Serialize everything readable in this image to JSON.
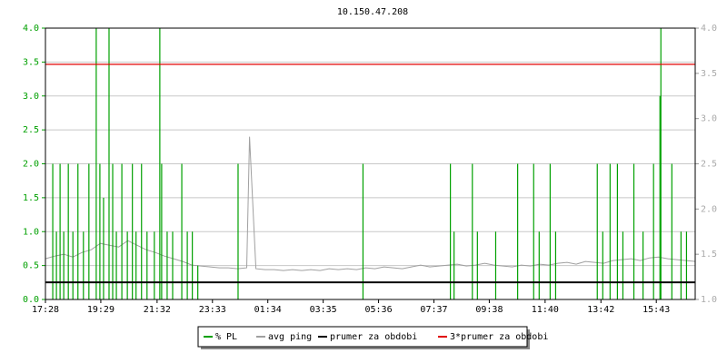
{
  "chart_data": {
    "type": "line",
    "title": "10.150.47.208",
    "xlim": [
      0,
      1420
    ],
    "xticks": [
      {
        "value": 0,
        "label": "17:28"
      },
      {
        "value": 121,
        "label": "19:29"
      },
      {
        "value": 244,
        "label": "21:32"
      },
      {
        "value": 365,
        "label": "23:33"
      },
      {
        "value": 486,
        "label": "01:34"
      },
      {
        "value": 607,
        "label": "03:35"
      },
      {
        "value": 728,
        "label": "05:36"
      },
      {
        "value": 849,
        "label": "07:37"
      },
      {
        "value": 970,
        "label": "09:38"
      },
      {
        "value": 1092,
        "label": "11:40"
      },
      {
        "value": 1214,
        "label": "13:42"
      },
      {
        "value": 1335,
        "label": "15:43"
      }
    ],
    "ylim": [
      0,
      4
    ],
    "yticks": [
      {
        "value": 0,
        "label": "0.0"
      },
      {
        "value": 0.5,
        "label": "0.5"
      },
      {
        "value": 1,
        "label": "1.0"
      },
      {
        "value": 1.5,
        "label": "1.5"
      },
      {
        "value": 2,
        "label": "2.0"
      },
      {
        "value": 2.5,
        "label": "2.5"
      },
      {
        "value": 3,
        "label": "3.0"
      },
      {
        "value": 3.5,
        "label": "3.5"
      },
      {
        "value": 4,
        "label": "4.0"
      }
    ],
    "y2lim": [
      1,
      4
    ],
    "y2ticks": [
      {
        "value": 1,
        "label": "1.0"
      },
      {
        "value": 1.5,
        "label": "1.5"
      },
      {
        "value": 2,
        "label": "2.0"
      },
      {
        "value": 2.5,
        "label": "2.5"
      },
      {
        "value": 3,
        "label": "3.0"
      },
      {
        "value": 3.5,
        "label": "3.5"
      },
      {
        "value": 4,
        "label": "4.0"
      }
    ],
    "grid": true,
    "legend": "bottom",
    "series": [
      {
        "name": "% PL",
        "color": "#00a000",
        "style": "spikes",
        "x": [
          16,
          24,
          32,
          40,
          50,
          60,
          71,
          83,
          95,
          111,
          119,
          127,
          139,
          147,
          155,
          167,
          179,
          190,
          198,
          210,
          222,
          238,
          250,
          254,
          266,
          278,
          298,
          310,
          321,
          333,
          421,
          694,
          885,
          893,
          933,
          944,
          984,
          1032,
          1067,
          1079,
          1103,
          1115,
          1206,
          1218,
          1234,
          1250,
          1262,
          1286,
          1306,
          1329,
          1343,
          1345,
          1369,
          1389,
          1401
        ],
        "values": [
          2,
          1,
          2,
          1,
          2,
          1,
          2,
          1,
          2,
          4,
          2,
          1.5,
          4,
          2,
          1,
          2,
          1,
          2,
          1,
          2,
          1,
          1,
          4,
          2,
          1,
          1,
          2,
          1,
          1,
          0.5,
          2,
          2,
          2,
          1,
          2,
          1,
          1,
          2,
          2,
          1,
          2,
          1,
          2,
          1,
          2,
          2,
          1,
          2,
          1,
          2,
          3,
          4,
          2,
          1,
          1
        ]
      },
      {
        "name": "avg ping",
        "color": "#a0a0a0",
        "style": "line",
        "axis": "y2",
        "x": [
          0,
          20,
          40,
          60,
          80,
          100,
          120,
          140,
          160,
          180,
          200,
          220,
          240,
          260,
          280,
          300,
          320,
          340,
          360,
          380,
          400,
          420,
          440,
          446,
          460,
          480,
          500,
          520,
          540,
          560,
          580,
          600,
          620,
          640,
          660,
          680,
          700,
          720,
          740,
          760,
          780,
          800,
          820,
          840,
          860,
          880,
          900,
          920,
          940,
          960,
          980,
          1000,
          1020,
          1040,
          1060,
          1080,
          1100,
          1120,
          1140,
          1160,
          1180,
          1200,
          1220,
          1240,
          1260,
          1280,
          1300,
          1320,
          1340,
          1360,
          1380,
          1400,
          1420
        ],
        "values": [
          1.45,
          1.48,
          1.5,
          1.47,
          1.52,
          1.55,
          1.62,
          1.6,
          1.58,
          1.65,
          1.6,
          1.55,
          1.52,
          1.48,
          1.45,
          1.42,
          1.38,
          1.37,
          1.36,
          1.35,
          1.35,
          1.34,
          1.35,
          2.8,
          1.34,
          1.33,
          1.33,
          1.32,
          1.33,
          1.32,
          1.33,
          1.32,
          1.34,
          1.33,
          1.34,
          1.33,
          1.35,
          1.34,
          1.36,
          1.35,
          1.34,
          1.36,
          1.38,
          1.36,
          1.37,
          1.38,
          1.39,
          1.37,
          1.38,
          1.4,
          1.38,
          1.37,
          1.36,
          1.38,
          1.37,
          1.39,
          1.38,
          1.4,
          1.41,
          1.39,
          1.42,
          1.41,
          1.4,
          1.43,
          1.44,
          1.45,
          1.43,
          1.46,
          1.47,
          1.45,
          1.44,
          1.43,
          1.42
        ]
      },
      {
        "name": "prumer za obdobi",
        "color": "#000000",
        "style": "hline",
        "axis": "y2",
        "value": 1.19
      },
      {
        "name": "3*prumer za obdobi",
        "color": "#e00000",
        "style": "hline",
        "axis": "y2",
        "value": 3.6
      }
    ]
  }
}
